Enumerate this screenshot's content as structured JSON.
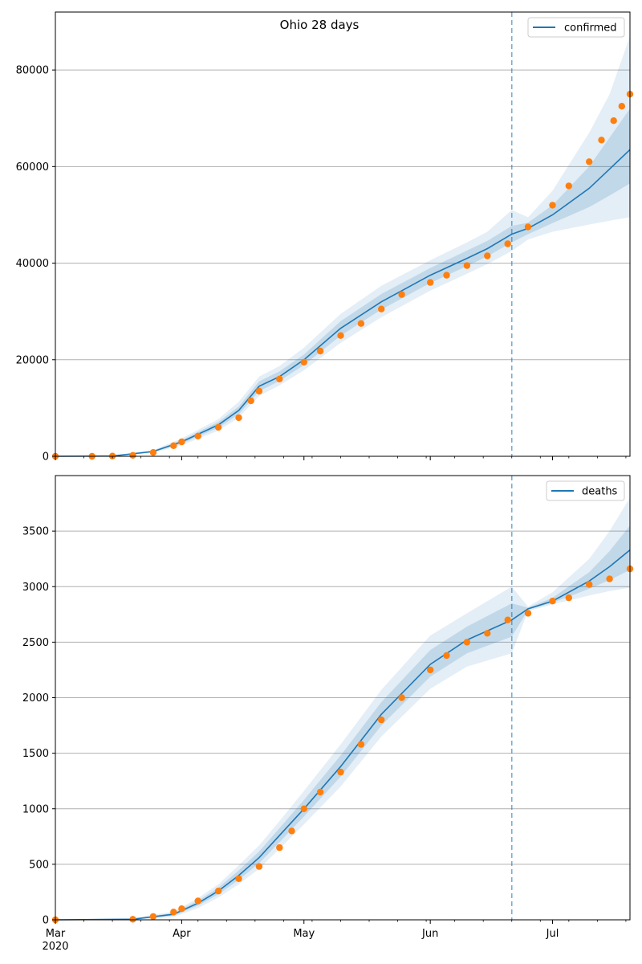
{
  "figure": {
    "title": "Ohio 28 days"
  },
  "colors": {
    "model_line": "#1f77b4",
    "band": "#1f77b4",
    "observed": "#ff7f0e",
    "grid": "#b0b0b0",
    "vline": "#1f77b4"
  },
  "x_axis": {
    "ticks": [
      {
        "date": "2020-03-01",
        "label": "Mar",
        "sublabel": "2020"
      },
      {
        "date": "2020-04-01",
        "label": "Apr"
      },
      {
        "date": "2020-05-01",
        "label": "May"
      },
      {
        "date": "2020-06-01",
        "label": "Jun"
      },
      {
        "date": "2020-07-01",
        "label": "Jul"
      }
    ],
    "range": [
      "2020-03-01",
      "2020-07-20"
    ]
  },
  "chart_data": [
    {
      "type": "line",
      "legend": "confirmed",
      "legend_position": "top-right",
      "grid": "horizontal",
      "ylim": [
        0,
        92000
      ],
      "yticks": [
        0,
        20000,
        40000,
        60000,
        80000
      ],
      "vline_date": "2020-06-21",
      "model": {
        "name": "confirmed",
        "x": [
          "2020-03-01",
          "2020-03-15",
          "2020-03-25",
          "2020-04-01",
          "2020-04-10",
          "2020-04-15",
          "2020-04-20",
          "2020-04-25",
          "2020-05-01",
          "2020-05-10",
          "2020-05-20",
          "2020-06-01",
          "2020-06-10",
          "2020-06-15",
          "2020-06-21",
          "2020-06-25",
          "2020-07-01",
          "2020-07-10",
          "2020-07-15",
          "2020-07-20"
        ],
        "y": [
          0,
          50,
          1000,
          3000,
          6500,
          9500,
          14500,
          16500,
          20000,
          26500,
          32000,
          37500,
          41000,
          43000,
          46000,
          47200,
          50000,
          55500,
          59500,
          63500
        ],
        "lower_outer": [
          0,
          0,
          700,
          2300,
          5300,
          8000,
          12500,
          14700,
          17800,
          23500,
          28800,
          34300,
          37800,
          39800,
          42500,
          44900,
          46500,
          48000,
          48800,
          49500
        ],
        "upper_outer": [
          0,
          100,
          1300,
          3700,
          7700,
          11300,
          16500,
          18700,
          22500,
          29500,
          35300,
          40600,
          44300,
          46500,
          51000,
          49500,
          55000,
          67000,
          75000,
          87000
        ],
        "lower_inner": [
          0,
          20,
          850,
          2650,
          5900,
          8700,
          13500,
          15600,
          18900,
          25000,
          30400,
          35900,
          39400,
          41400,
          44300,
          46000,
          48300,
          51600,
          54000,
          56500
        ],
        "upper_inner": [
          0,
          80,
          1150,
          3350,
          7100,
          10300,
          15500,
          17600,
          21100,
          28000,
          33600,
          39000,
          42600,
          44600,
          47700,
          48400,
          52000,
          60000,
          66000,
          72000
        ]
      },
      "observed": {
        "name": "observed",
        "x": [
          "2020-03-01",
          "2020-03-10",
          "2020-03-15",
          "2020-03-20",
          "2020-03-25",
          "2020-03-30",
          "2020-04-01",
          "2020-04-05",
          "2020-04-10",
          "2020-04-15",
          "2020-04-18",
          "2020-04-20",
          "2020-04-25",
          "2020-05-01",
          "2020-05-05",
          "2020-05-10",
          "2020-05-15",
          "2020-05-20",
          "2020-05-25",
          "2020-06-01",
          "2020-06-05",
          "2020-06-10",
          "2020-06-15",
          "2020-06-20",
          "2020-06-25",
          "2020-07-01",
          "2020-07-05",
          "2020-07-10",
          "2020-07-13",
          "2020-07-16",
          "2020-07-18",
          "2020-07-20"
        ],
        "y": [
          0,
          0,
          50,
          200,
          800,
          2200,
          3000,
          4200,
          6000,
          8000,
          11500,
          13500,
          16000,
          19500,
          21800,
          25000,
          27500,
          30500,
          33500,
          36000,
          37500,
          39500,
          41500,
          44000,
          47500,
          52000,
          56000,
          61000,
          65500,
          69500,
          72500,
          75000
        ]
      }
    },
    {
      "type": "line",
      "legend": "deaths",
      "legend_position": "top-right",
      "grid": "horizontal",
      "ylim": [
        0,
        4000
      ],
      "yticks": [
        0,
        500,
        1000,
        1500,
        2000,
        2500,
        3000,
        3500
      ],
      "vline_date": "2020-06-21",
      "model": {
        "name": "deaths",
        "x": [
          "2020-03-01",
          "2020-03-20",
          "2020-03-30",
          "2020-04-05",
          "2020-04-10",
          "2020-04-15",
          "2020-04-20",
          "2020-04-25",
          "2020-05-01",
          "2020-05-10",
          "2020-05-20",
          "2020-06-01",
          "2020-06-10",
          "2020-06-21",
          "2020-06-25",
          "2020-07-01",
          "2020-07-10",
          "2020-07-15",
          "2020-07-20"
        ],
        "y": [
          0,
          5,
          50,
          150,
          260,
          400,
          560,
          760,
          1000,
          1380,
          1850,
          2300,
          2520,
          2700,
          2800,
          2870,
          3050,
          3180,
          3330
        ],
        "lower_outer": [
          0,
          0,
          25,
          105,
          200,
          320,
          460,
          640,
          860,
          1200,
          1650,
          2080,
          2280,
          2400,
          2780,
          2840,
          2920,
          2960,
          2990
        ],
        "upper_outer": [
          0,
          15,
          75,
          195,
          320,
          490,
          670,
          890,
          1160,
          1580,
          2070,
          2560,
          2760,
          3000,
          2820,
          2950,
          3250,
          3500,
          3800
        ],
        "lower_inner": [
          0,
          3,
          38,
          128,
          230,
          360,
          510,
          700,
          930,
          1290,
          1750,
          2190,
          2400,
          2550,
          2790,
          2855,
          2980,
          3060,
          3150
        ],
        "upper_inner": [
          0,
          10,
          62,
          172,
          290,
          445,
          615,
          825,
          1080,
          1480,
          1960,
          2430,
          2640,
          2850,
          2810,
          2900,
          3130,
          3320,
          3550
        ]
      },
      "observed": {
        "name": "observed",
        "x": [
          "2020-03-01",
          "2020-03-20",
          "2020-03-25",
          "2020-03-30",
          "2020-04-01",
          "2020-04-05",
          "2020-04-10",
          "2020-04-15",
          "2020-04-20",
          "2020-04-25",
          "2020-04-28",
          "2020-05-01",
          "2020-05-05",
          "2020-05-10",
          "2020-05-15",
          "2020-05-20",
          "2020-05-25",
          "2020-06-01",
          "2020-06-05",
          "2020-06-10",
          "2020-06-15",
          "2020-06-20",
          "2020-06-25",
          "2020-07-01",
          "2020-07-05",
          "2020-07-10",
          "2020-07-15",
          "2020-07-20"
        ],
        "y": [
          0,
          5,
          30,
          70,
          100,
          170,
          260,
          370,
          480,
          650,
          800,
          1000,
          1150,
          1330,
          1580,
          1800,
          2000,
          2250,
          2380,
          2500,
          2580,
          2700,
          2760,
          2870,
          2900,
          3020,
          3070,
          3160
        ]
      }
    }
  ]
}
